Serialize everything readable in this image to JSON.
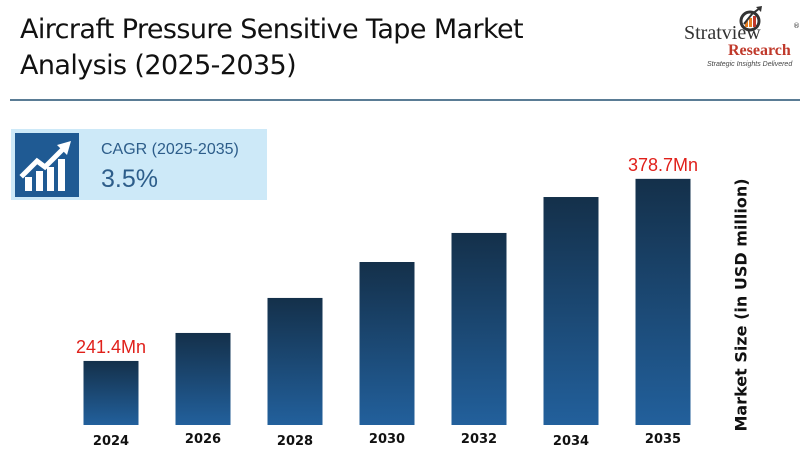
{
  "header": {
    "title_line1": "Aircraft Pressure Sensitive Tape Market",
    "title_line2": "Analysis (2025-2035)"
  },
  "logo": {
    "brand": "Stratview",
    "registered": "®",
    "sub": "Research",
    "tagline": "Strategic Insights Delivered"
  },
  "cagr": {
    "label": "CAGR (2025-2035)",
    "value": "3.5%",
    "icon": "growth-chart-icon"
  },
  "colors": {
    "bar_top": "#14304a",
    "bar_bottom": "#22609c",
    "label_red": "#e0201a",
    "cagr_bg": "#cde9f8",
    "icon_bg": "#1f5a93"
  },
  "chart_data": {
    "type": "bar",
    "title": "Aircraft Pressure Sensitive Tape Market Analysis (2025-2035)",
    "xlabel": "",
    "ylabel": "Market Size (in USD million)",
    "categories": [
      "2024",
      "2026",
      "2028",
      "2030",
      "2032",
      "2034",
      "2035"
    ],
    "values": [
      241.4,
      262.5,
      288.9,
      316.0,
      337.9,
      365.0,
      378.7
    ],
    "data_labels": [
      {
        "category": "2024",
        "text": "241.4Mn"
      },
      {
        "category": "2035",
        "text": "378.7Mn"
      }
    ],
    "grid": false,
    "legend": "none"
  }
}
